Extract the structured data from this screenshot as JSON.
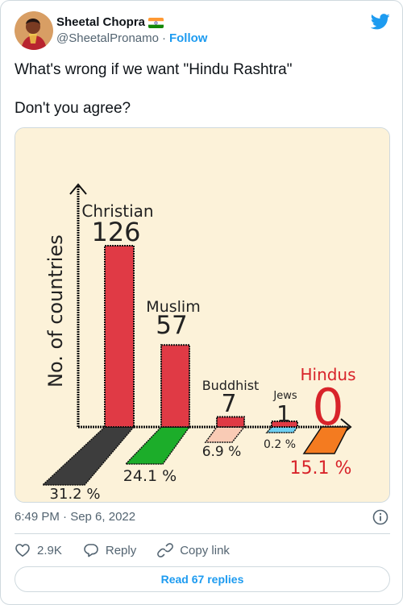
{
  "author": {
    "display_name": "Sheetal Chopra",
    "handle": "@SheetalPronamo",
    "separator": "·",
    "follow_label": "Follow",
    "flag_icon": "india-flag-icon"
  },
  "tweet": {
    "line1": "What's wrong if we want \"Hindu Rashtra\"",
    "line2": "Don't you agree?"
  },
  "chart_data": {
    "type": "bar",
    "ylabel": "No. of countries",
    "categories": [
      "Christian",
      "Muslim",
      "Buddhist",
      "Jews",
      "Hindus"
    ],
    "values": [
      126,
      57,
      7,
      1,
      0
    ],
    "population_share_labels": [
      "31.2 %",
      "24.1 %",
      "6.9 %",
      "0.2 %",
      "15.1 %"
    ],
    "population_share": [
      31.2,
      24.1,
      6.9,
      0.2,
      15.1
    ],
    "colors": {
      "bar": "#e03a45",
      "hindu_text": "#d8232a",
      "christian_base": "#3d3d3d",
      "muslim_base": "#1cad2a",
      "buddhist_base": "#f9cbb5",
      "jews_base": "#6fd0f2",
      "hindu_base": "#f47b20",
      "background": "#fcf2d9"
    },
    "grid": false
  },
  "footer": {
    "timestamp": "6:49 PM · Sep 6, 2022",
    "likes_count": "2.9K",
    "reply_label": "Reply",
    "copy_link_label": "Copy link",
    "read_replies_label": "Read 67 replies"
  },
  "icons": {
    "brand": "twitter-bird-icon",
    "info": "info-icon",
    "like": "heart-icon",
    "reply": "speech-bubble-icon",
    "copy": "link-icon"
  }
}
